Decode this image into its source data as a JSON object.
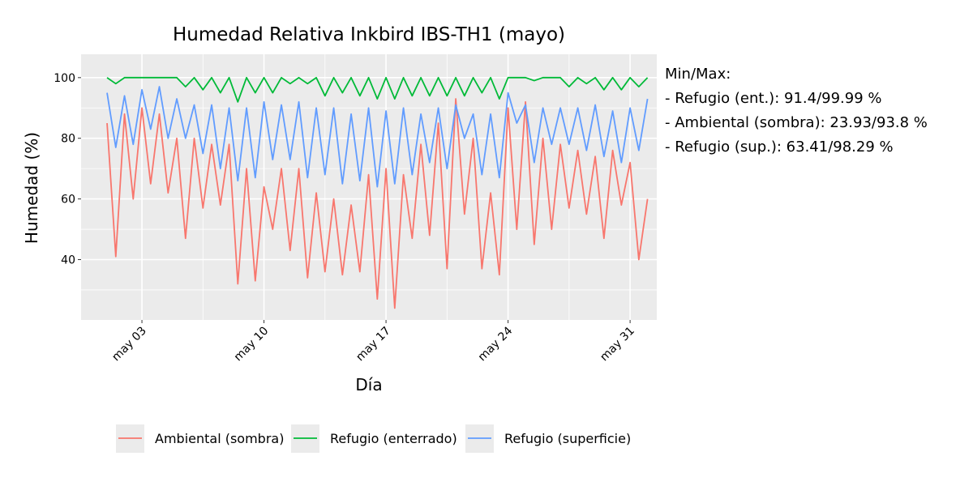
{
  "chart_data": {
    "type": "line",
    "title": "Humedad Relativa Inkbird IBS-TH1 (mayo)",
    "xlabel": "Día",
    "ylabel": "Humedad (%)",
    "annotation": [
      "Min/Max:",
      "- Refugio (ent.): 91.4/99.99 %",
      "- Ambiental (sombra): 23.93/93.8 %",
      "- Refugio (sup.): 63.41/98.29 %"
    ],
    "x": [
      1,
      1.5,
      2,
      2.5,
      3,
      3.5,
      4,
      4.5,
      5,
      5.5,
      6,
      6.5,
      7,
      7.5,
      8,
      8.5,
      9,
      9.5,
      10,
      10.5,
      11,
      11.5,
      12,
      12.5,
      13,
      13.5,
      14,
      14.5,
      15,
      15.5,
      16,
      16.5,
      17,
      17.5,
      18,
      18.5,
      19,
      19.5,
      20,
      20.5,
      21,
      21.5,
      22,
      22.5,
      23,
      23.5,
      24,
      24.5,
      25,
      25.5,
      26,
      26.5,
      27,
      27.5,
      28,
      28.5,
      29,
      29.5,
      30,
      30.5,
      31,
      31.5,
      32
    ],
    "series": [
      {
        "name": "Ambiental (sombra)",
        "color": "#F8766D",
        "values": [
          85,
          41,
          88,
          60,
          90,
          65,
          88,
          62,
          80,
          47,
          80,
          57,
          78,
          58,
          78,
          32,
          70,
          33,
          64,
          50,
          70,
          43,
          70,
          34,
          62,
          36,
          60,
          35,
          58,
          36,
          68,
          27,
          70,
          24,
          68,
          47,
          78,
          48,
          85,
          37,
          93,
          55,
          80,
          37,
          62,
          35,
          90,
          50,
          92,
          45,
          80,
          50,
          78,
          57,
          76,
          55,
          74,
          47,
          76,
          58,
          72,
          40,
          60
        ]
      },
      {
        "name": "Refugio (enterrado)",
        "color": "#00BA38",
        "values": [
          100,
          98,
          100,
          100,
          100,
          100,
          100,
          100,
          100,
          97,
          100,
          96,
          100,
          95,
          100,
          92,
          100,
          95,
          100,
          95,
          100,
          98,
          100,
          98,
          100,
          94,
          100,
          95,
          100,
          94,
          100,
          93,
          100,
          93,
          100,
          94,
          100,
          94,
          100,
          94,
          100,
          94,
          100,
          95,
          100,
          93,
          100,
          100,
          100,
          99,
          100,
          100,
          100,
          97,
          100,
          98,
          100,
          96,
          100,
          96,
          100,
          97,
          100
        ]
      },
      {
        "name": "Refugio (superficie)",
        "color": "#619CFF",
        "values": [
          95,
          77,
          94,
          78,
          96,
          83,
          97,
          80,
          93,
          80,
          91,
          75,
          91,
          70,
          90,
          66,
          90,
          67,
          92,
          73,
          91,
          73,
          92,
          67,
          90,
          68,
          90,
          65,
          88,
          66,
          90,
          64,
          89,
          65,
          90,
          68,
          88,
          72,
          90,
          70,
          91,
          80,
          88,
          68,
          88,
          67,
          95,
          85,
          91,
          72,
          90,
          78,
          90,
          78,
          90,
          76,
          91,
          74,
          89,
          72,
          90,
          76,
          93
        ]
      }
    ],
    "xlim": [
      -0.49,
      32.53
    ],
    "xticks": [
      {
        "value": 3,
        "label": "may 03"
      },
      {
        "value": 10,
        "label": "may 10"
      },
      {
        "value": 17,
        "label": "may 17"
      },
      {
        "value": 24,
        "label": "may 24"
      },
      {
        "value": 31,
        "label": "may 31"
      }
    ],
    "ylim": [
      20.1,
      107.7
    ],
    "yticks": [
      40,
      60,
      80,
      100
    ],
    "grid": true,
    "legend": "bottom"
  }
}
